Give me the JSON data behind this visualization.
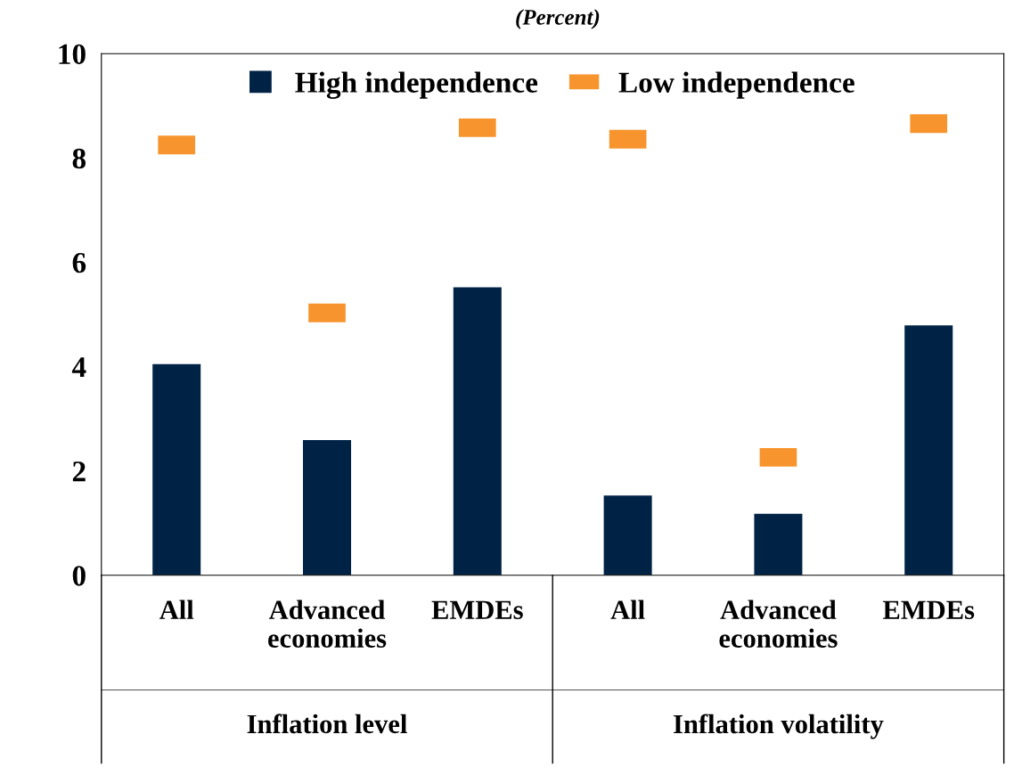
{
  "chart_data": {
    "type": "bar",
    "title": "(Percent)",
    "categories": [
      "All",
      "Advanced economies",
      "EMDEs",
      "All",
      "Advanced economies",
      "EMDEs"
    ],
    "series": [
      {
        "name": "High independence",
        "color": "#002345",
        "values": [
          4.05,
          2.59,
          5.52,
          1.53,
          1.18,
          4.79
        ]
      },
      {
        "name": "Low independence",
        "type": "scatter",
        "color": "#f7942e",
        "values": [
          8.25,
          5.03,
          8.58,
          8.36,
          2.26,
          8.66
        ]
      }
    ],
    "ylim": [
      0,
      10
    ],
    "yticks": [
      0,
      2,
      4,
      6,
      8,
      10
    ],
    "legend": "top",
    "grid": false,
    "annotations": [
      "Inflation level",
      "Inflation volatility"
    ]
  }
}
